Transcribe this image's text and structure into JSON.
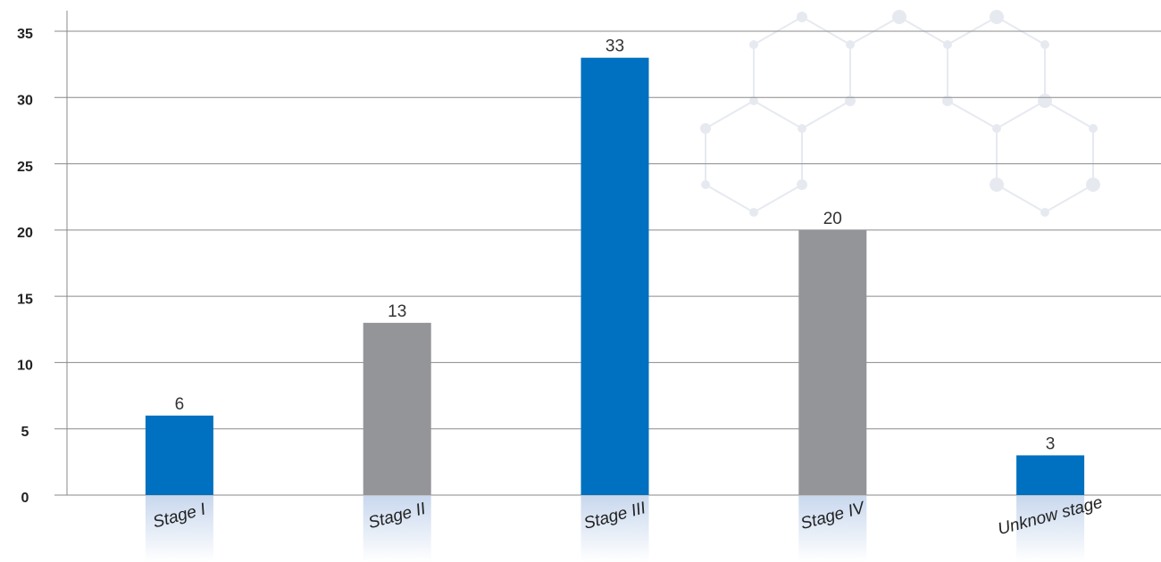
{
  "chart_data": {
    "type": "bar",
    "categories": [
      "Stage I",
      "Stage II",
      "Stage III",
      "Stage IV",
      "Unknow stage"
    ],
    "values": [
      6,
      13,
      33,
      20,
      3
    ],
    "colors": [
      "#0070c0",
      "#939598",
      "#0070c0",
      "#939598",
      "#0070c0"
    ],
    "ylim": [
      0,
      35
    ],
    "yticks": [
      0,
      5,
      10,
      15,
      20,
      25,
      30,
      35
    ],
    "grid": true
  }
}
